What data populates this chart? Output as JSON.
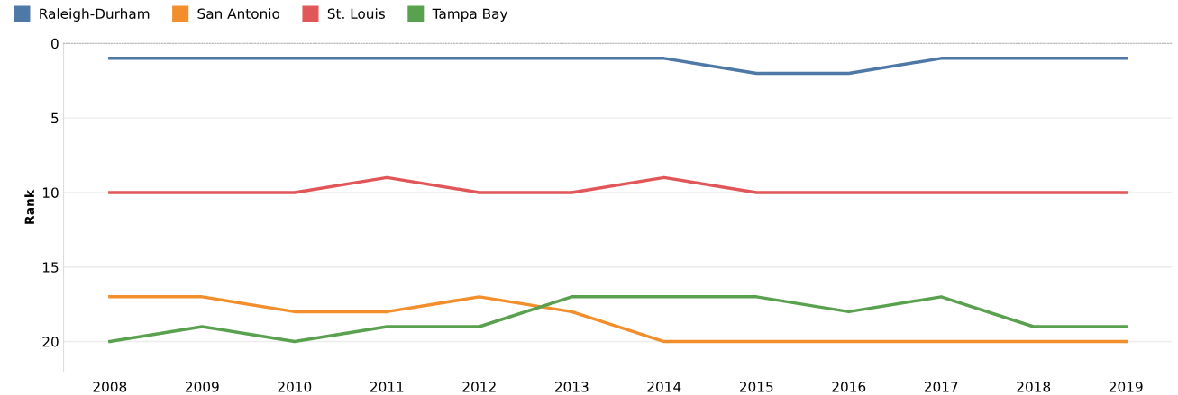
{
  "chart_data": {
    "type": "line",
    "ylabel": "Rank",
    "categories": [
      "2008",
      "2009",
      "2010",
      "2011",
      "2012",
      "2013",
      "2014",
      "2015",
      "2016",
      "2017",
      "2018",
      "2019"
    ],
    "series": [
      {
        "name": "Raleigh-Durham",
        "color": "#4e79a7",
        "values": [
          1,
          1,
          1,
          1,
          1,
          1,
          1,
          2,
          2,
          1,
          1,
          1
        ]
      },
      {
        "name": "San Antonio",
        "color": "#f28e2b",
        "values": [
          17,
          17,
          18,
          18,
          17,
          18,
          20,
          20,
          20,
          20,
          20,
          20
        ]
      },
      {
        "name": "St. Louis",
        "color": "#e15759",
        "values": [
          10,
          10,
          10,
          9,
          10,
          10,
          9,
          10,
          10,
          10,
          10,
          10
        ]
      },
      {
        "name": "Tampa Bay",
        "color": "#59a14f",
        "values": [
          20,
          19,
          20,
          19,
          19,
          17,
          17,
          17,
          18,
          17,
          19,
          19
        ]
      }
    ],
    "ylim": [
      22,
      0
    ],
    "yticks": [
      0,
      5,
      10,
      15,
      20
    ],
    "grid": "y",
    "legend": "top left",
    "marker": "none",
    "line_style": "solid"
  }
}
